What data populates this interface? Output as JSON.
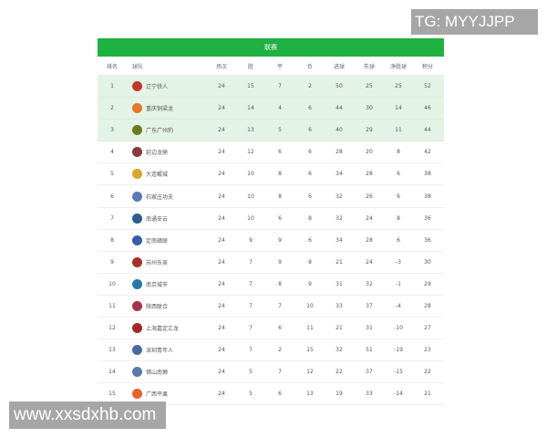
{
  "table": {
    "title": "联赛",
    "headers": [
      "排名",
      "球队",
      "场次",
      "胜",
      "平",
      "负",
      "进球",
      "失球",
      "净胜球",
      "积分"
    ],
    "rows": [
      [
        "1",
        "辽宁铁人",
        "24",
        "15",
        "7",
        "2",
        "50",
        "25",
        "25",
        "52"
      ],
      [
        "2",
        "重庆铜梁龙",
        "24",
        "14",
        "4",
        "6",
        "44",
        "30",
        "14",
        "46"
      ],
      [
        "3",
        "广东广州豹",
        "24",
        "13",
        "5",
        "6",
        "40",
        "29",
        "11",
        "44"
      ],
      [
        "4",
        "延边龙鼎",
        "24",
        "12",
        "6",
        "6",
        "28",
        "20",
        "8",
        "42"
      ],
      [
        "5",
        "大连鲲城",
        "24",
        "10",
        "8",
        "6",
        "34",
        "28",
        "6",
        "38"
      ],
      [
        "6",
        "石家庄功夫",
        "24",
        "10",
        "8",
        "6",
        "32",
        "26",
        "6",
        "38"
      ],
      [
        "7",
        "南通支云",
        "24",
        "10",
        "6",
        "8",
        "32",
        "24",
        "8",
        "36"
      ],
      [
        "8",
        "定南赣联",
        "24",
        "9",
        "9",
        "6",
        "34",
        "28",
        "6",
        "36"
      ],
      [
        "9",
        "苏州东吴",
        "24",
        "7",
        "9",
        "8",
        "21",
        "24",
        "-3",
        "30"
      ],
      [
        "10",
        "南京城市",
        "24",
        "7",
        "8",
        "9",
        "31",
        "32",
        "-1",
        "29"
      ],
      [
        "11",
        "陕西联合",
        "24",
        "7",
        "7",
        "10",
        "33",
        "37",
        "-4",
        "28"
      ],
      [
        "12",
        "上海嘉定汇龙",
        "24",
        "7",
        "6",
        "11",
        "21",
        "31",
        "-10",
        "27"
      ],
      [
        "13",
        "深圳青年人",
        "24",
        "7",
        "2",
        "15",
        "32",
        "51",
        "-19",
        "23"
      ],
      [
        "14",
        "佛山南狮",
        "24",
        "5",
        "7",
        "12",
        "22",
        "37",
        "-15",
        "22"
      ],
      [
        "15",
        "广西平果",
        "24",
        "5",
        "6",
        "13",
        "19",
        "33",
        "-14",
        "21"
      ]
    ],
    "logo_colors": [
      "#c0392b",
      "#e8762b",
      "#6b7a1e",
      "#8a3a3a",
      "#d9a52a",
      "#5a7bb0",
      "#2d5c8a",
      "#3a5da8",
      "#a8302a",
      "#2a78a8",
      "#a8304a",
      "#a02a2a",
      "#4a6aa0",
      "#5a7aa8",
      "#e8602a"
    ],
    "accent": "#1fb141",
    "highlight": "#e3f4e6"
  },
  "watermarks": {
    "top": "TG: MYYJJPP",
    "bottom": "www.xxsdxhb.com"
  }
}
